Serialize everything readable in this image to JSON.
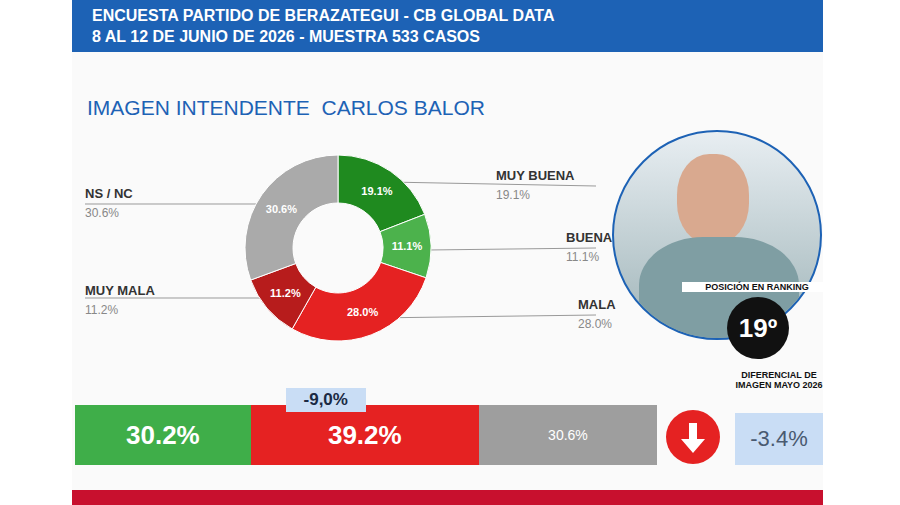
{
  "header": {
    "title": "ENCUESTA PARTIDO DE BERAZATEGUI - CB GLOBAL DATA",
    "subtitle": "8 AL 12 DE JUNIO DE 2026 - MUESTRA 533 CASOS"
  },
  "chart_data": {
    "type": "pie",
    "title": "IMAGEN INTENDENTE  CARLOS BALOR",
    "categories": [
      "MUY BUENA",
      "BUENA",
      "MALA",
      "MUY MALA",
      "NS / NC"
    ],
    "values": [
      19.1,
      11.1,
      28.0,
      11.2,
      30.6
    ],
    "value_labels": [
      "19.1%",
      "11.1%",
      "28.0%",
      "11.2%",
      "30.6%"
    ],
    "colors": [
      "#1f8a1f",
      "#4cb24c",
      "#e52222",
      "#b71c1c",
      "#aaaaaa"
    ],
    "data_labels": true
  },
  "summary": {
    "positive": {
      "value": 30.2,
      "label": "30.2%"
    },
    "negative": {
      "value": 39.2,
      "label": "39.2%"
    },
    "difference": {
      "value": -9.0,
      "label": "-9,0%"
    },
    "ns_nc": {
      "value": 30.6,
      "label": "30.6%"
    }
  },
  "ranking": {
    "title": "POSICIÓN EN RANKING",
    "value": 19,
    "label": "19º"
  },
  "image_differential": {
    "title": "DIFERENCIAL DE IMAGEN MAYO 2026",
    "value": -3.4,
    "label": "-3.4%"
  }
}
